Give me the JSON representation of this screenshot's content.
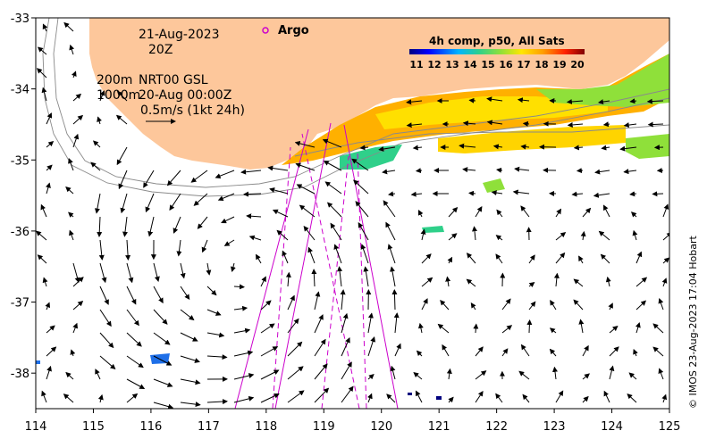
{
  "chart_data": {
    "type": "map",
    "x_axis": {
      "ticks": [
        114,
        115,
        116,
        117,
        118,
        119,
        120,
        121,
        122,
        123,
        124,
        125
      ],
      "range": [
        114,
        125
      ]
    },
    "y_axis": {
      "ticks": [
        -33,
        -34,
        -35,
        -36,
        -37,
        -38
      ],
      "range": [
        -38.5,
        -33
      ]
    },
    "labels": {
      "date": "21-Aug-2023",
      "hour": "20Z",
      "argo": "Argo",
      "contour_200": "200m",
      "contour_1000": "1000m",
      "product": "NRT00 GSL",
      "product_time": "20-Aug 00:00Z",
      "scale": "0.5m/s (1kt 24h)",
      "colorbar_title": "4h comp, p50, All Sats",
      "credit": "© IMOS 23-Aug-2023 17:04 Hobart"
    },
    "colorbar": {
      "ticks": [
        11,
        12,
        13,
        14,
        15,
        16,
        17,
        18,
        19,
        20
      ]
    },
    "colors": {
      "land": "#fdc79b",
      "track": "#cc00cc",
      "arrow": "#000000"
    }
  }
}
